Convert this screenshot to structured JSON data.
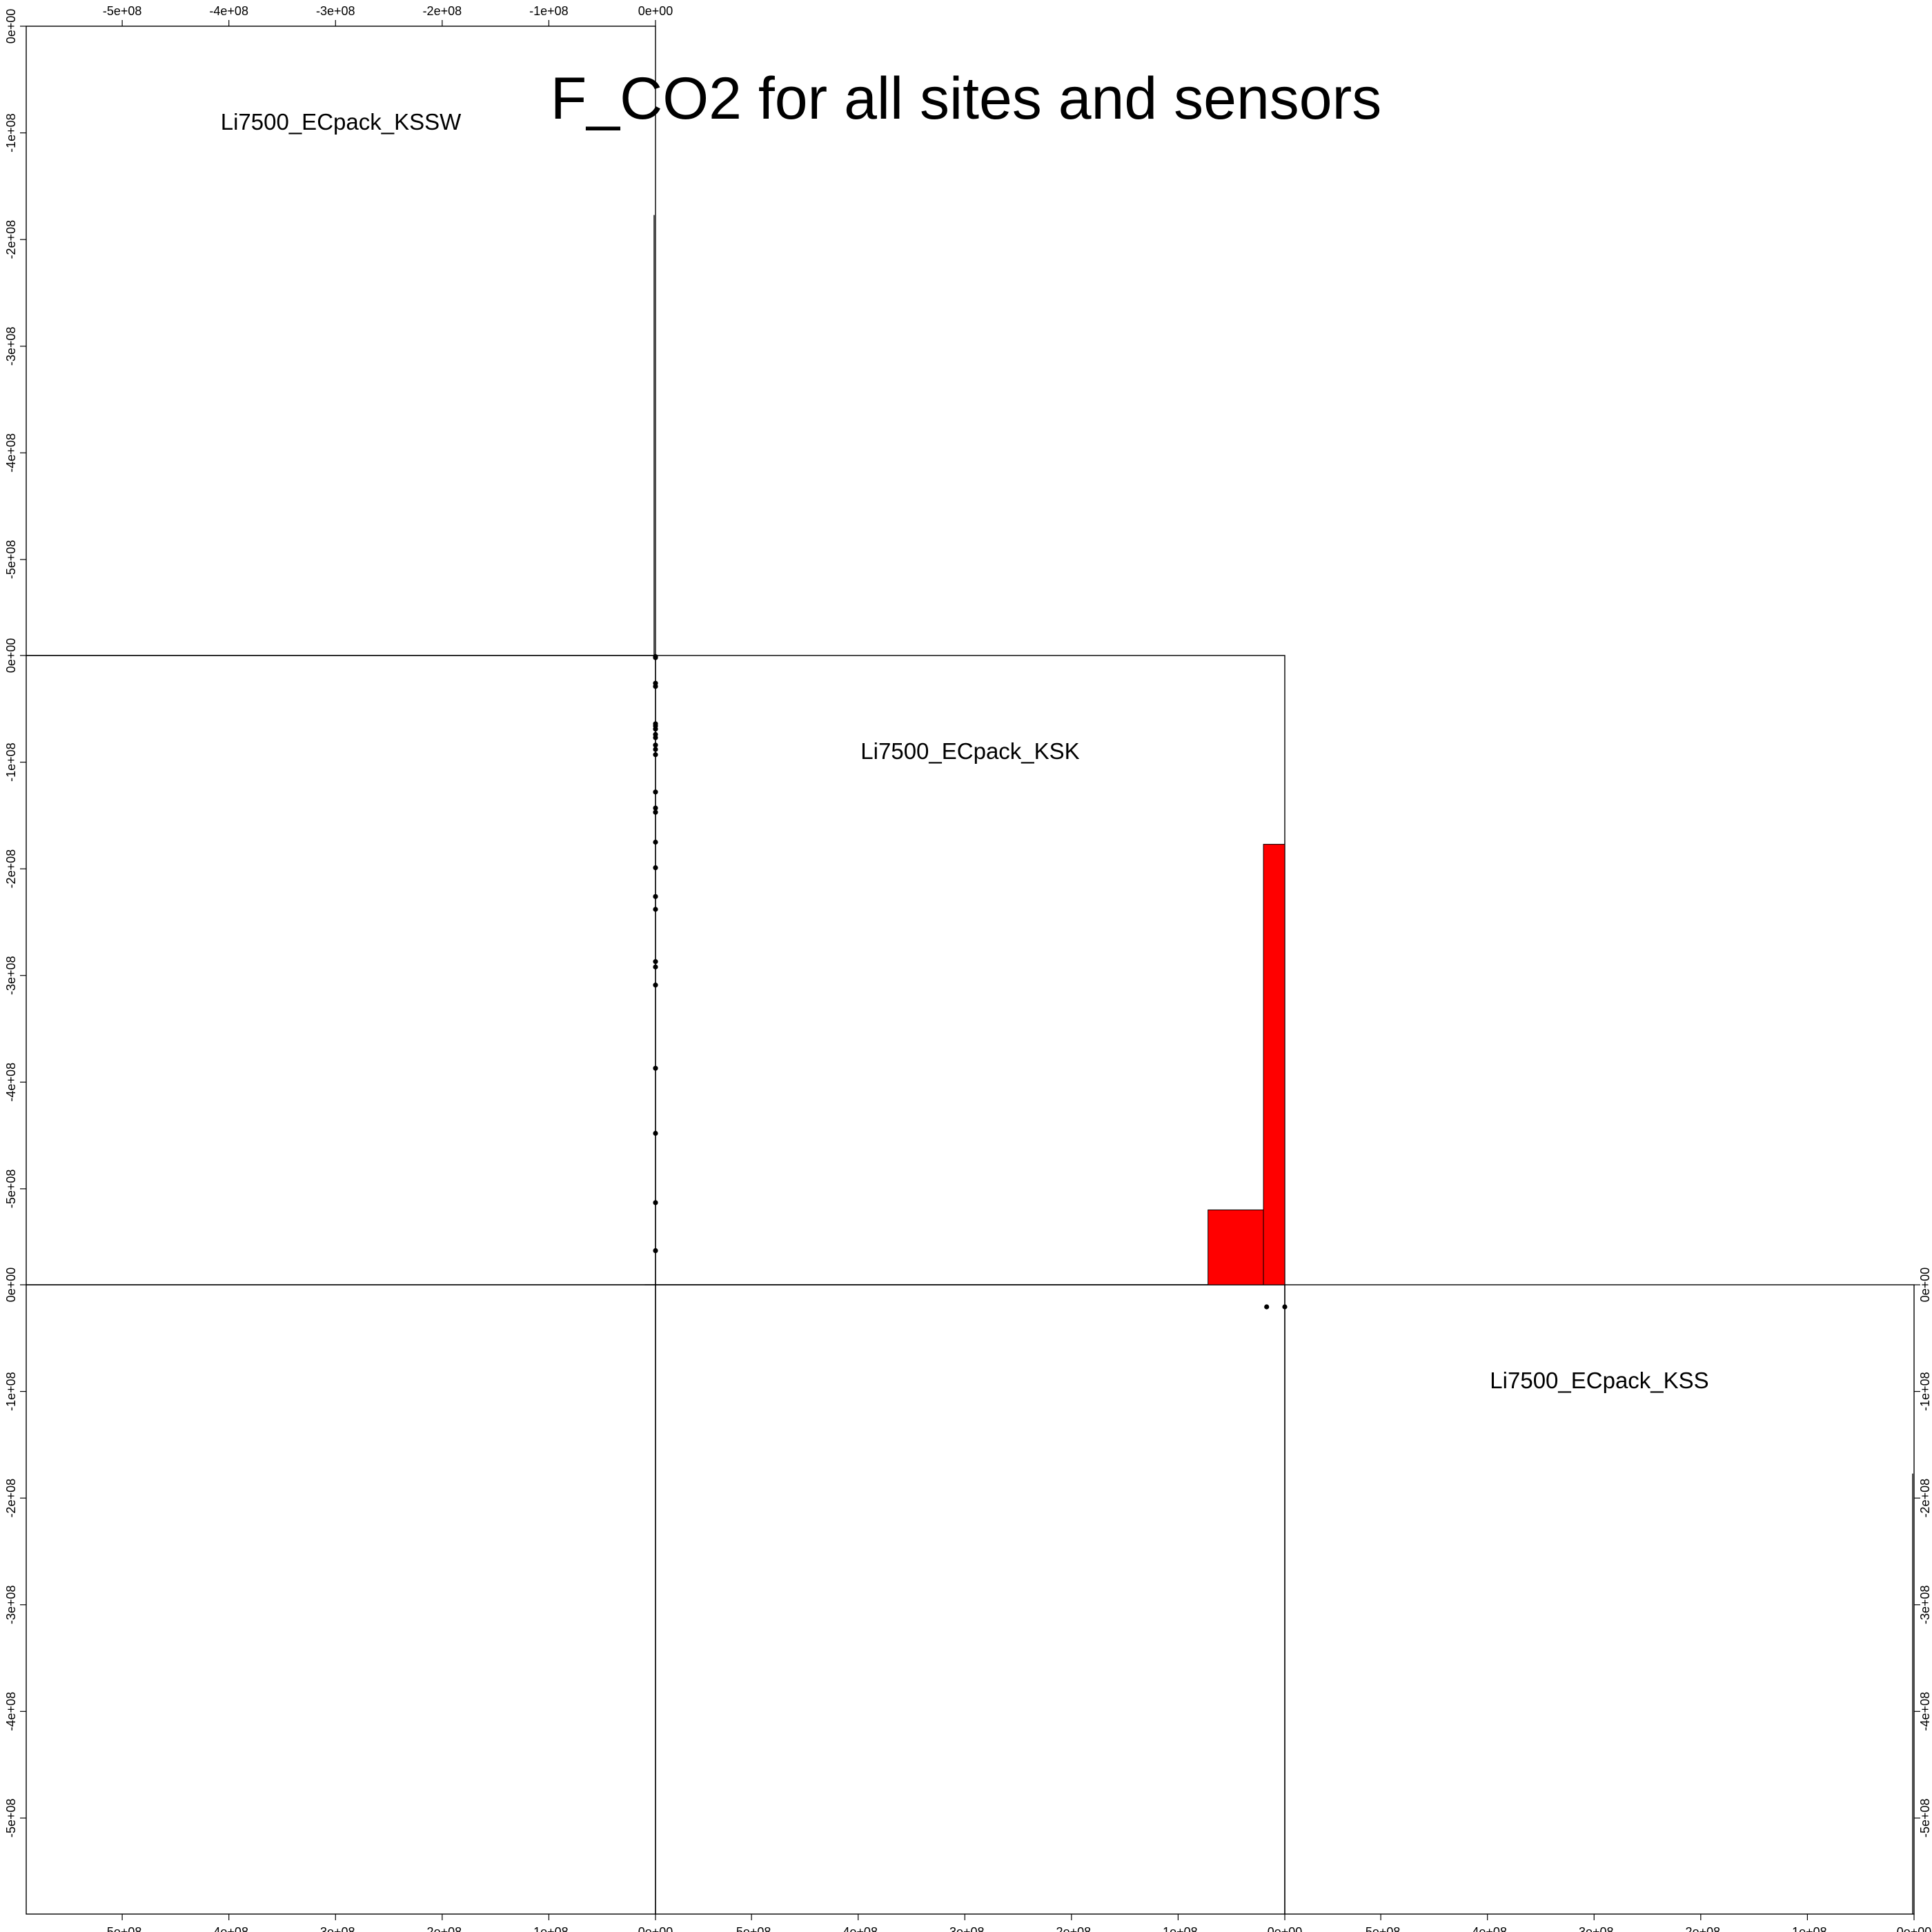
{
  "chart_data": {
    "type": "scatter",
    "plot_kind": "scatterplot matrix (pairs plot) with histograms on the diagonal",
    "title": "F_CO2 for all sites and sensors",
    "variables": [
      "Li7500_ECpack_KSSW",
      "Li7500_ECpack_KSK",
      "Li7500_ECpack_KSS"
    ],
    "axis_range": [
      -590000000,
      0
    ],
    "tick_values": [
      -500000000,
      -400000000,
      -300000000,
      -200000000,
      -100000000,
      0
    ],
    "tick_labels": [
      "-5e+08",
      "-4e+08",
      "-3e+08",
      "-2e+08",
      "-1e+08",
      "0e+00"
    ],
    "scatter_KSK_vs_KSSW": {
      "x_variable": "Li7500_ECpack_KSSW",
      "y_variable": "Li7500_ECpack_KSK",
      "x": [
        0,
        0,
        0,
        0,
        0,
        0,
        0,
        0,
        0,
        0,
        0,
        0,
        0,
        0,
        0,
        0,
        0,
        0,
        0,
        0,
        0,
        0,
        0,
        0,
        0,
        0
      ],
      "y": [
        -1000000,
        -2000000,
        -26000000,
        -29000000,
        -64000000,
        -66000000,
        -69000000,
        -74000000,
        -77000000,
        -84000000,
        -88000000,
        -93000000,
        -128000000,
        -143000000,
        -147000000,
        -175000000,
        -199000000,
        -226000000,
        -238000000,
        -287000000,
        -292000000,
        -309000000,
        -387000000,
        -448000000,
        -513000000,
        -558000000
      ]
    },
    "scatter_KSS_vs_KSK": {
      "x_variable": "Li7500_ECpack_KSK",
      "y_variable": "Li7500_ECpack_KSS",
      "x": [
        -17000000,
        0
      ],
      "y": [
        0,
        0
      ]
    },
    "hist_KSSW": {
      "bin_edges": [
        -600000000,
        -20000000,
        0
      ],
      "relative_heights": [
        0.0,
        1.0
      ]
    },
    "hist_KSK": {
      "bin_edges": [
        -600000000,
        -72000000,
        -20000000,
        0
      ],
      "relative_heights": [
        0.0,
        0.17,
        1.0
      ]
    },
    "hist_KSS": {
      "bin_edges": [
        -600000000,
        -20000000,
        0
      ],
      "relative_heights": [
        0.0,
        1.0
      ]
    },
    "colors": {
      "histogram_fill": "#ff0000",
      "points": "#000000",
      "frame": "#000000"
    },
    "grid": false,
    "legend": "none",
    "empty_panels": [
      "row 1 col 2",
      "row 1 col 3",
      "row 2 col 3",
      "row 3 col 1"
    ]
  }
}
